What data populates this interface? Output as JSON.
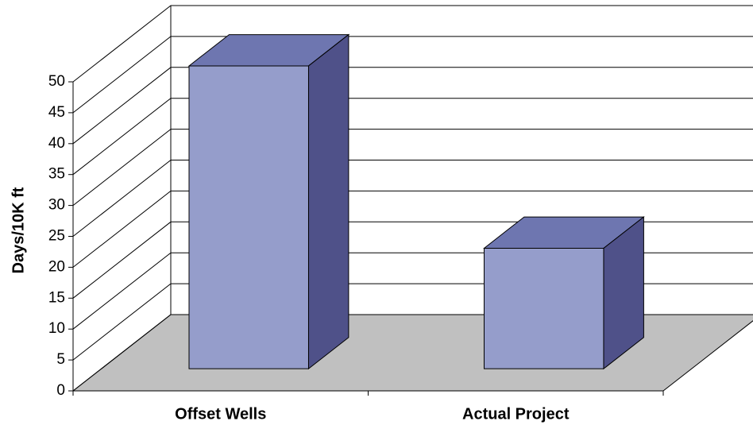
{
  "chart_data": {
    "type": "bar",
    "y_label": "Days/10K ft",
    "categories": [
      "Offset Wells",
      "Actual Project"
    ],
    "values": [
      49,
      19.5
    ],
    "color": "#959dcb",
    "top_color": "#6e76b0",
    "side_color": "#4f5189",
    "floor_color": "#c0c0c0",
    "ylim": [
      0,
      50
    ],
    "yticks": [
      0,
      5,
      10,
      15,
      20,
      25,
      30,
      35,
      40,
      45,
      50
    ],
    "grid": true
  }
}
